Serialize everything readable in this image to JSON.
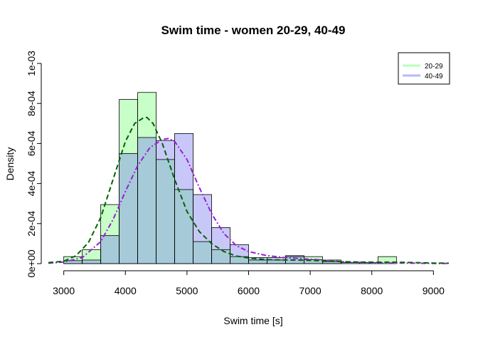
{
  "chart_data": {
    "type": "histogram",
    "title": "Swim time - women 20-29, 40-49",
    "xlabel": "Swim time [s]",
    "ylabel": "Density",
    "xlim": [
      2750,
      9250
    ],
    "ylim": [
      0,
      0.001
    ],
    "x_ticks": [
      3000,
      4000,
      5000,
      6000,
      7000,
      8000,
      9000
    ],
    "x_tick_labels": [
      "3000",
      "4000",
      "5000",
      "6000",
      "7000",
      "8000",
      "9000"
    ],
    "y_ticks": [
      0,
      0.0002,
      0.0004,
      0.0006,
      0.0008,
      0.001
    ],
    "y_tick_labels": [
      "0e+00",
      "2e-04",
      "4e-04",
      "6e-04",
      "8e-04",
      "1e-03"
    ],
    "bin_width": 300,
    "legend": {
      "position": "top-right",
      "entries": [
        "20-29",
        "40-49"
      ]
    },
    "colors": {
      "series1_fill": "#c8ffc8",
      "series2_fill": "#c8c8f8",
      "overlap_fill": "#a6cad8",
      "density1_line": "#006400",
      "density2_line": "#9a1fd8",
      "legend1": "#b9ffb9",
      "legend2": "#b7b7ff"
    },
    "series": [
      {
        "name": "20-29",
        "bins": [
          {
            "x0": 3000,
            "x1": 3300,
            "value": 3.5e-05
          },
          {
            "x0": 3300,
            "x1": 3600,
            "value": 7e-05
          },
          {
            "x0": 3600,
            "x1": 3900,
            "value": 0.000295
          },
          {
            "x0": 3900,
            "x1": 4200,
            "value": 0.00082
          },
          {
            "x0": 4200,
            "x1": 4500,
            "value": 0.000855
          },
          {
            "x0": 4500,
            "x1": 4800,
            "value": 0.00052
          },
          {
            "x0": 4800,
            "x1": 5100,
            "value": 0.00037
          },
          {
            "x0": 5100,
            "x1": 5400,
            "value": 0.00011
          },
          {
            "x0": 5400,
            "x1": 5700,
            "value": 7e-05
          },
          {
            "x0": 5700,
            "x1": 6000,
            "value": 3.5e-05
          },
          {
            "x0": 6000,
            "x1": 6300,
            "value": 1.8e-05
          },
          {
            "x0": 6300,
            "x1": 6600,
            "value": 1.8e-05
          },
          {
            "x0": 6600,
            "x1": 6900,
            "value": 3.5e-05
          },
          {
            "x0": 6900,
            "x1": 7200,
            "value": 3.5e-05
          },
          {
            "x0": 7200,
            "x1": 7500,
            "value": 1.8e-05
          },
          {
            "x0": 7500,
            "x1": 7800,
            "value": 0.0
          },
          {
            "x0": 7800,
            "x1": 8100,
            "value": 0.0
          },
          {
            "x0": 8100,
            "x1": 8400,
            "value": 3.5e-05
          }
        ],
        "density_curve": {
          "x": [
            2750,
            3000,
            3200,
            3400,
            3600,
            3800,
            4000,
            4150,
            4300,
            4350,
            4450,
            4600,
            4800,
            5000,
            5200,
            5400,
            5600,
            5800,
            6000,
            6300,
            6600,
            6900,
            7200,
            7500,
            7800,
            8100,
            8400,
            8700,
            9000,
            9250
          ],
          "y": [
            5e-06,
            1.2e-05,
            4e-05,
            0.000105,
            0.00023,
            0.00042,
            0.00061,
            0.0007,
            0.00073,
            0.00073,
            0.0007,
            0.0006,
            0.00042,
            0.00026,
            0.00016,
            0.0001,
            6e-05,
            3.8e-05,
            2.8e-05,
            2e-05,
            1.8e-05,
            1.7e-05,
            1.4e-05,
            1e-05,
            8e-06,
            7e-06,
            7e-06,
            5e-06,
            3e-06,
            2e-06
          ]
        }
      },
      {
        "name": "40-49",
        "bins": [
          {
            "x0": 3000,
            "x1": 3300,
            "value": 1.5e-05
          },
          {
            "x0": 3300,
            "x1": 3600,
            "value": 1.8e-05
          },
          {
            "x0": 3600,
            "x1": 3900,
            "value": 0.00014
          },
          {
            "x0": 3900,
            "x1": 4200,
            "value": 0.00055
          },
          {
            "x0": 4200,
            "x1": 4500,
            "value": 0.00063
          },
          {
            "x0": 4500,
            "x1": 4800,
            "value": 0.000615
          },
          {
            "x0": 4800,
            "x1": 5100,
            "value": 0.00065
          },
          {
            "x0": 5100,
            "x1": 5400,
            "value": 0.000345
          },
          {
            "x0": 5400,
            "x1": 5700,
            "value": 0.00018
          },
          {
            "x0": 5700,
            "x1": 6000,
            "value": 9.5e-05
          },
          {
            "x0": 6000,
            "x1": 6300,
            "value": 3e-05
          },
          {
            "x0": 6300,
            "x1": 6600,
            "value": 3e-05
          },
          {
            "x0": 6600,
            "x1": 6900,
            "value": 4e-05
          },
          {
            "x0": 6900,
            "x1": 7200,
            "value": 2e-05
          },
          {
            "x0": 7200,
            "x1": 7500,
            "value": 1e-05
          },
          {
            "x0": 7500,
            "x1": 7800,
            "value": 5e-06
          },
          {
            "x0": 7800,
            "x1": 8100,
            "value": 5e-06
          },
          {
            "x0": 8100,
            "x1": 8400,
            "value": 0.0
          }
        ],
        "density_curve": {
          "x": [
            2750,
            3000,
            3300,
            3600,
            3800,
            4000,
            4200,
            4400,
            4600,
            4700,
            4800,
            5000,
            5200,
            5400,
            5600,
            5800,
            6000,
            6300,
            6600,
            6900,
            7200,
            7500,
            7800,
            8100,
            8400,
            8700,
            9000,
            9250
          ],
          "y": [
            2e-06,
            8e-06,
            3e-05,
            0.00011,
            0.00022,
            0.00036,
            0.00049,
            0.00058,
            0.00062,
            0.000625,
            0.00061,
            0.00052,
            0.00038,
            0.00025,
            0.00015,
            9e-05,
            6e-05,
            4e-05,
            3e-05,
            2.4e-05,
            1.8e-05,
            1e-05,
            6e-06,
            4e-06,
            3e-06,
            2e-06,
            1e-06,
            1e-06
          ]
        }
      }
    ]
  }
}
